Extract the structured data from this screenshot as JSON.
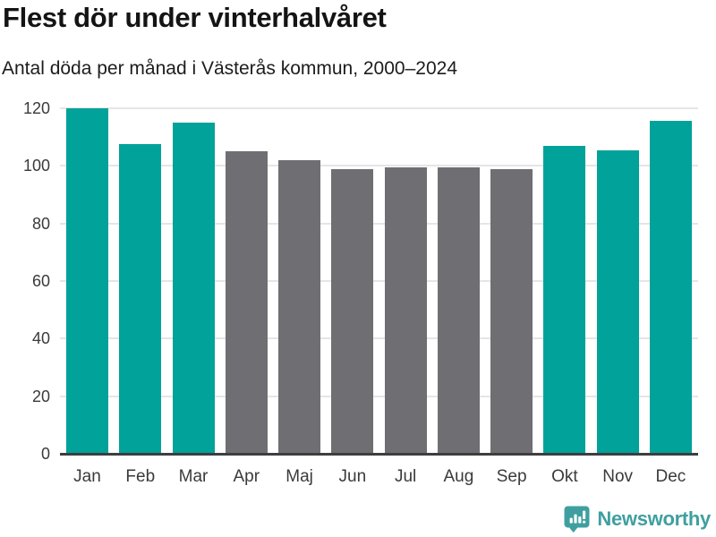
{
  "chart_data": {
    "type": "bar",
    "title": "Flest dör under vinterhalvåret",
    "subtitle": "Antal döda per månad i Västerås kommun, 2000–2024",
    "categories": [
      "Jan",
      "Feb",
      "Mar",
      "Apr",
      "Maj",
      "Jun",
      "Jul",
      "Aug",
      "Sep",
      "Okt",
      "Nov",
      "Dec"
    ],
    "values": [
      120,
      107.5,
      115,
      105,
      102,
      99,
      99.5,
      99.5,
      99,
      107,
      105.5,
      115.5
    ],
    "bar_colors": [
      "#00a29a",
      "#00a29a",
      "#00a29a",
      "#6e6e73",
      "#6e6e73",
      "#6e6e73",
      "#6e6e73",
      "#6e6e73",
      "#6e6e73",
      "#00a29a",
      "#00a29a",
      "#00a29a"
    ],
    "colors": {
      "winter_highlight": "#00a29a",
      "summer_neutral": "#6e6e73",
      "gridline": "#e5e5e7",
      "axis_line": "#3e3e3e"
    },
    "xlabel": "",
    "ylabel": "",
    "ylim": [
      0,
      120
    ],
    "yticks": [
      0,
      20,
      40,
      60,
      80,
      100,
      120
    ],
    "grid": "horizontal",
    "legend": "none"
  },
  "branding": {
    "name": "Newsworthy",
    "logo_icon": "newsworthy-speech-bubble-bar-chart-icon",
    "color": "#3f9fa0"
  }
}
